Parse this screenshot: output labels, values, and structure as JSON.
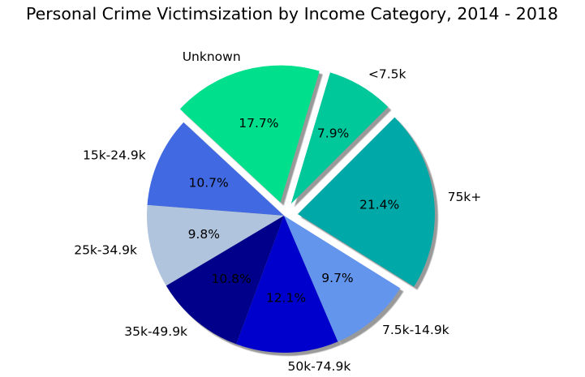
{
  "chart_data": {
    "type": "pie",
    "title": "Personal Crime Victimsization by Income Category, 2014 - 2018",
    "slices": [
      {
        "label": "<7.5k",
        "value": 7.9,
        "pct_label": "7.9%",
        "color": "#00C89A",
        "exploded": true
      },
      {
        "label": "Unknown",
        "value": 17.7,
        "pct_label": "17.7%",
        "color": "#00E08C",
        "exploded": true
      },
      {
        "label": "15k-24.9k",
        "value": 10.7,
        "pct_label": "10.7%",
        "color": "#4169E1",
        "exploded": false
      },
      {
        "label": "25k-34.9k",
        "value": 9.8,
        "pct_label": "9.8%",
        "color": "#B0C4DE",
        "exploded": false
      },
      {
        "label": "35k-49.9k",
        "value": 10.8,
        "pct_label": "10.8%",
        "color": "#00008B",
        "exploded": false
      },
      {
        "label": "50k-74.9k",
        "value": 12.1,
        "pct_label": "12.1%",
        "color": "#0000CD",
        "exploded": false
      },
      {
        "label": "7.5k-14.9k",
        "value": 9.7,
        "pct_label": "9.7%",
        "color": "#6495ED",
        "exploded": false
      },
      {
        "label": "75k+",
        "value": 21.4,
        "pct_label": "21.4%",
        "color": "#00A8A8",
        "exploded": true
      }
    ],
    "shadow": true,
    "legend": "none"
  }
}
